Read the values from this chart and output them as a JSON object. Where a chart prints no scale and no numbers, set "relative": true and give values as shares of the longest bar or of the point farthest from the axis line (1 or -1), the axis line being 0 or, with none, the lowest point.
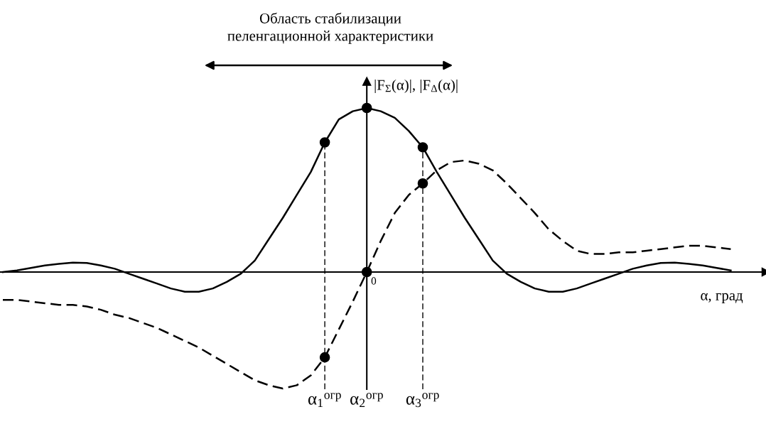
{
  "chart_data": {
    "type": "line",
    "relative": true,
    "title": "Область стабилизации\nпеленгационной характеристики",
    "xlabel": "α, град",
    "ylabel": "|F$_{Σ}$(α)|, |F$_{Δ}$(α)|",
    "annotations": [
      "0"
    ],
    "categories": [
      null,
      null,
      null,
      null,
      null,
      null,
      null,
      null,
      null,
      null,
      null,
      null,
      null,
      null,
      null,
      null,
      null,
      null,
      null,
      null,
      null,
      null,
      null,
      "α$_{1}$$^{огр}$",
      null,
      null,
      "α$_{2}$$^{огр}$",
      null,
      null,
      null,
      "α$_{3}$$^{огр}$",
      null,
      null,
      null,
      null,
      null,
      null,
      null,
      null,
      null,
      null,
      null,
      null,
      null,
      null,
      null,
      null,
      null,
      null,
      null,
      null,
      null,
      null
    ],
    "series": [
      {
        "line_style": "solid",
        "color": "#000000",
        "values": [
          0.0,
          0.01,
          0.025,
          0.04,
          0.05,
          0.057,
          0.055,
          0.04,
          0.02,
          -0.01,
          -0.04,
          -0.07,
          -0.1,
          -0.12,
          -0.12,
          -0.1,
          -0.06,
          -0.01,
          0.07,
          0.2,
          0.33,
          0.47,
          0.61,
          0.79,
          0.93,
          0.98,
          1.0,
          0.98,
          0.94,
          0.86,
          0.76,
          0.61,
          0.47,
          0.33,
          0.2,
          0.07,
          -0.01,
          -0.06,
          -0.1,
          -0.12,
          -0.12,
          -0.1,
          -0.07,
          -0.04,
          -0.01,
          0.02,
          0.04,
          0.055,
          0.057,
          0.05,
          0.04,
          0.025,
          0.01
        ]
      },
      {
        "line_style": "dashed",
        "color": "#000000",
        "values": [
          -0.17,
          -0.17,
          -0.18,
          -0.19,
          -0.2,
          -0.2,
          -0.21,
          -0.23,
          -0.26,
          -0.28,
          -0.31,
          -0.34,
          -0.38,
          -0.42,
          -0.46,
          -0.51,
          -0.56,
          -0.61,
          -0.66,
          -0.69,
          -0.71,
          -0.69,
          -0.63,
          -0.52,
          -0.35,
          -0.18,
          0.0,
          0.19,
          0.36,
          0.47,
          0.54,
          0.62,
          0.67,
          0.68,
          0.66,
          0.62,
          0.54,
          0.45,
          0.36,
          0.26,
          0.19,
          0.13,
          0.11,
          0.11,
          0.12,
          0.12,
          0.13,
          0.14,
          0.15,
          0.16,
          0.16,
          0.15,
          0.14
        ]
      },
      {
        "type": "scatter",
        "marker": "circle",
        "color": "#000000",
        "x": [
          "α$_{1}$$^{огр}$",
          "α$_{2}$$^{огр}$",
          "α$_{3}$$^{огр}$",
          "α$_{1}$$^{огр}$",
          "α$_{2}$$^{огр}$",
          "α$_{3}$$^{огр}$"
        ],
        "values": [
          0.79,
          1.0,
          0.76,
          -0.52,
          0.0,
          0.54
        ]
      }
    ],
    "ref_lines": [
      {
        "axis": "x",
        "value": "α$_{1}$$^{огр}$",
        "color": "#000000",
        "line_style": "dashed"
      },
      {
        "axis": "x",
        "value": "α$_{3}$$^{огр}$",
        "color": "#000000",
        "line_style": "dashed"
      }
    ],
    "grid": false
  }
}
